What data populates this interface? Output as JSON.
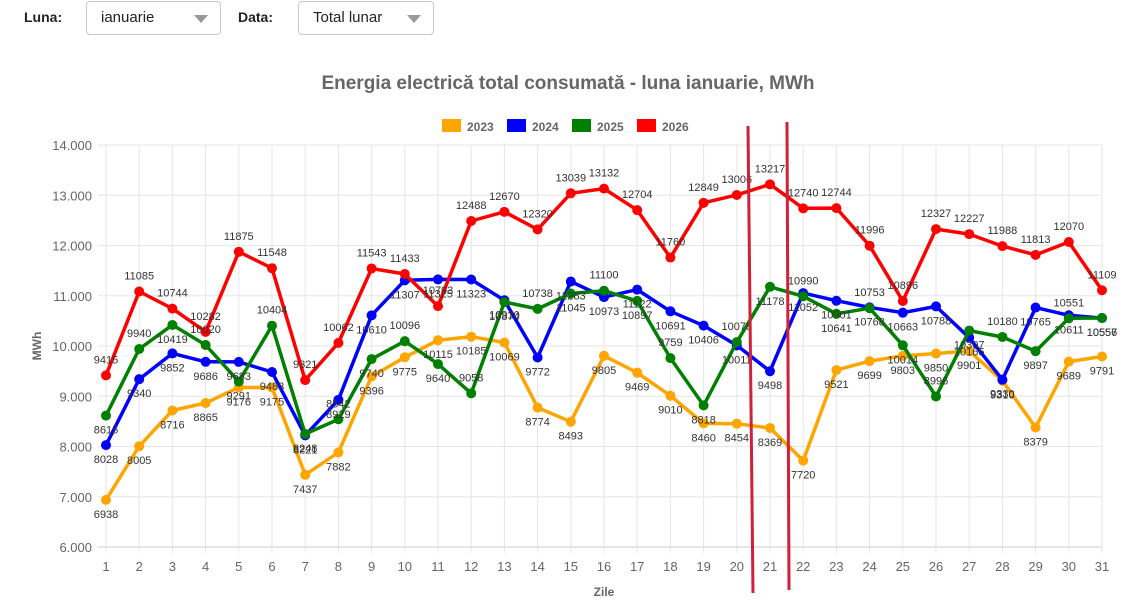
{
  "controls": {
    "month_label": "Luna:",
    "month_value": "ianuarie",
    "data_label": "Data:",
    "data_value": "Total lunar"
  },
  "chart_data": {
    "type": "line",
    "title": "Energia electrică total consumată - luna ianuarie, MWh",
    "xlabel": "Zile",
    "ylabel": "MWh",
    "ylim": [
      6000,
      14000
    ],
    "yticks": [
      6000,
      7000,
      8000,
      9000,
      10000,
      11000,
      12000,
      13000,
      14000
    ],
    "ytick_labels": [
      "6.000",
      "7.000",
      "8.000",
      "9.000",
      "10.000",
      "11.000",
      "12.000",
      "13.000",
      "14.000"
    ],
    "grid": true,
    "legend_position": "top-center",
    "categories": [
      "1",
      "2",
      "3",
      "4",
      "5",
      "6",
      "7",
      "8",
      "9",
      "10",
      "11",
      "12",
      "13",
      "14",
      "15",
      "16",
      "17",
      "18",
      "19",
      "20",
      "21",
      "22",
      "23",
      "24",
      "25",
      "26",
      "27",
      "28",
      "29",
      "30",
      "31"
    ],
    "series": [
      {
        "name": "2023",
        "color": "#FFA500",
        "values": [
          6938,
          8005,
          8716,
          8865,
          9176,
          9175,
          7437,
          7882,
          9396,
          9775,
          10115,
          10185,
          10069,
          8774,
          8493,
          9805,
          9469,
          9010,
          8460,
          8454,
          8369,
          7720,
          9521,
          9699,
          9803,
          9850,
          9901,
          9310,
          8379,
          9689,
          9791
        ]
      },
      {
        "name": "2024",
        "color": "#0000FF",
        "values": [
          8028,
          9340,
          9852,
          9686,
          9683,
          9483,
          8221,
          8929,
          10610,
          11307,
          11325,
          11323,
          10910,
          9772,
          11283,
          10973,
          11122,
          10691,
          10406,
          10011,
          9498,
          11052,
          10901,
          10768,
          10663,
          10788,
          10165,
          9330,
          10765,
          10611,
          10556
        ]
      },
      {
        "name": "2025",
        "color": "#008000",
        "values": [
          8615,
          9940,
          10419,
          10020,
          9291,
          10404,
          8248,
          8542,
          9740,
          10096,
          9640,
          9058,
          10874,
          10738,
          11045,
          11100,
          10897,
          9759,
          8818,
          10078,
          11178,
          10990,
          10641,
          10753,
          10014,
          8996,
          10307,
          10180,
          9897,
          10551,
          10557
        ]
      },
      {
        "name": "2026",
        "color": "#FF0000",
        "values": [
          9415,
          11085,
          10744,
          10282,
          11875,
          11548,
          9321,
          10062,
          11543,
          11433,
          10793,
          12488,
          12670,
          12320,
          13039,
          13132,
          12704,
          11760,
          12849,
          13006,
          13217,
          12740,
          12744,
          11996,
          10896,
          12327,
          12227,
          11988,
          11813,
          12070,
          11109
        ]
      }
    ],
    "annotations": {
      "highlight_lines_color": "#D0203A",
      "highlight_between_days": [
        "20",
        "22"
      ]
    }
  }
}
